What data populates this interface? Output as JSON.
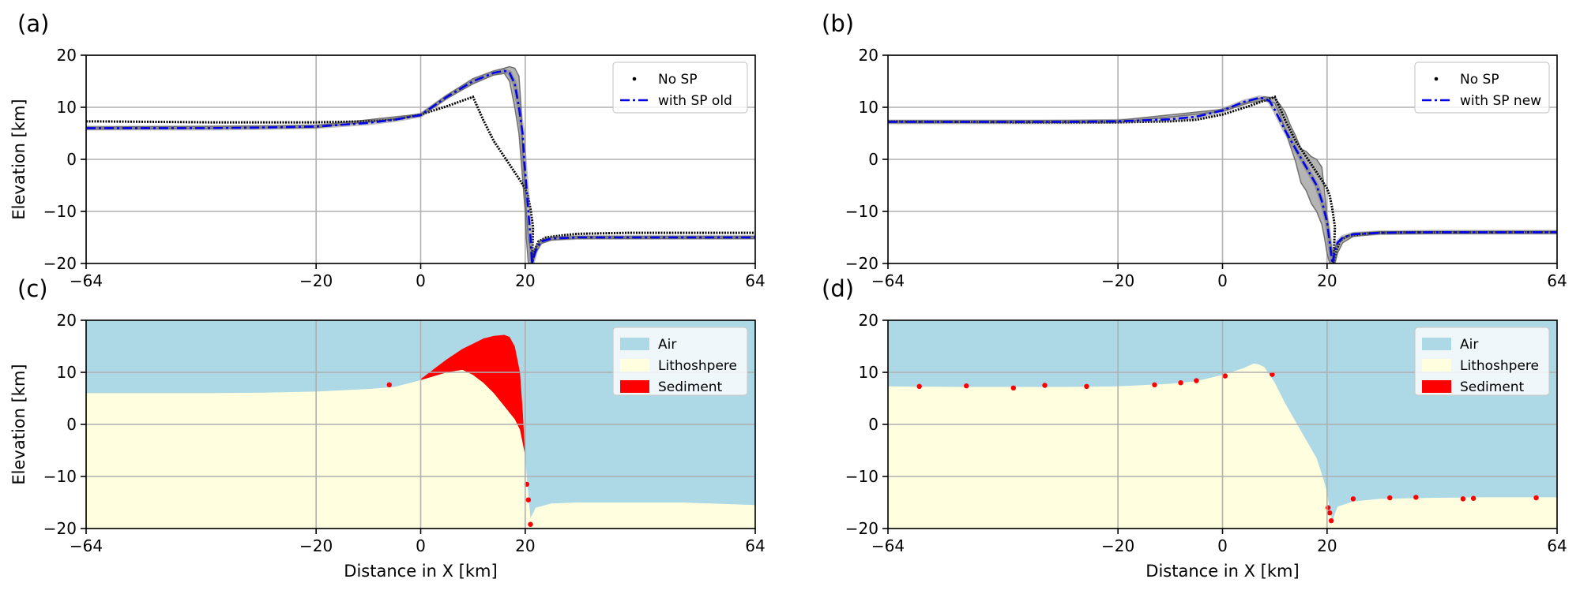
{
  "colors": {
    "no_sp": "#000000",
    "with_sp_line": "#0000ee",
    "band": "#a8a8a8",
    "band_edge": "#707070",
    "air": "#add8e6",
    "lithosphere": "#ffffe0",
    "sediment": "#ff0000",
    "grid": "#b0b0b0"
  },
  "chart_data": [
    {
      "id": "a",
      "panel_label": "(a)",
      "type": "line",
      "xlabel": "",
      "ylabel": "Elevation [km]",
      "xlim": [
        -64,
        64
      ],
      "ylim": [
        -20,
        20
      ],
      "xticks": [
        -64,
        -20,
        0,
        20,
        64
      ],
      "xtick_labels": [
        "−64",
        "−20",
        "0",
        "20",
        "64"
      ],
      "yticks": [
        20,
        10,
        0,
        -10,
        -20
      ],
      "ytick_labels": [
        "20",
        "10",
        "0",
        "−10",
        "−20"
      ],
      "grid": true,
      "legend_position": "top-right",
      "series": [
        {
          "name": "No SP",
          "style": "dots",
          "x": [
            -64,
            -50,
            -40,
            -30,
            -20,
            -10,
            -5,
            0,
            5,
            10,
            12,
            14,
            16,
            18,
            19,
            20,
            20.5,
            21,
            21.5,
            21.3,
            21.8,
            22.5,
            24,
            27,
            30,
            35,
            40,
            50,
            64
          ],
          "y": [
            7.3,
            7.2,
            7.1,
            7.1,
            7.1,
            7.3,
            7.6,
            8.6,
            10.2,
            12.0,
            7.5,
            3.5,
            0.5,
            -2.5,
            -4,
            -5.6,
            -7,
            -9.5,
            -13,
            -20,
            -17.5,
            -15.8,
            -15,
            -14.6,
            -14.3,
            -14.2,
            -14.1,
            -14.1,
            -14.1
          ]
        },
        {
          "name": "with SP old",
          "style": "dash-dot",
          "x": [
            -64,
            -50,
            -40,
            -30,
            -20,
            -10,
            -5,
            0,
            5,
            10,
            14,
            16,
            17,
            18,
            18.8,
            19.5,
            19.8,
            20.2,
            20.6,
            21,
            21.3,
            22,
            23,
            25,
            30,
            40,
            50,
            64
          ],
          "y": [
            6.0,
            6.0,
            6.0,
            6.1,
            6.3,
            7.0,
            7.6,
            8.5,
            12.0,
            15.0,
            16.6,
            17.0,
            16.6,
            14.5,
            10,
            5,
            0,
            -5,
            -10,
            -15,
            -20,
            -17.5,
            -15.8,
            -15.2,
            -15.0,
            -15.0,
            -15.0,
            -15.0
          ]
        }
      ],
      "band": {
        "x": [
          -64,
          -20,
          0,
          5,
          10,
          14,
          16,
          17,
          18,
          18.8,
          19.2,
          19.6,
          20,
          20.2,
          20.6,
          21,
          21.4,
          22,
          23,
          25,
          30,
          64
        ],
        "upper": [
          6.2,
          6.5,
          8.7,
          12.3,
          15.5,
          17.0,
          17.5,
          17.8,
          17.5,
          16,
          10,
          0,
          -5,
          -10,
          -15,
          -17,
          -18,
          -16.8,
          -15.5,
          -15.0,
          -14.8,
          -14.8
        ],
        "lower": [
          5.8,
          6.1,
          8.3,
          11.7,
          14.5,
          16.2,
          16.5,
          15,
          10,
          5,
          0,
          -5,
          -10,
          -15,
          -20,
          -20,
          -20,
          -18,
          -16.2,
          -15.5,
          -15.2,
          -15.2
        ]
      }
    },
    {
      "id": "b",
      "panel_label": "(b)",
      "type": "line",
      "xlabel": "",
      "ylabel": "",
      "xlim": [
        -64,
        64
      ],
      "ylim": [
        -20,
        20
      ],
      "xticks": [
        -64,
        -20,
        0,
        20,
        64
      ],
      "xtick_labels": [
        "−64",
        "−20",
        "0",
        "20",
        "64"
      ],
      "yticks": [
        20,
        10,
        0,
        -10,
        -20
      ],
      "ytick_labels": [
        "20",
        "10",
        "0",
        "−10",
        "−20"
      ],
      "grid": true,
      "legend_position": "top-right",
      "series": [
        {
          "name": "No SP",
          "style": "dots",
          "x": [
            -64,
            -50,
            -40,
            -30,
            -20,
            -10,
            -5,
            0,
            5,
            10,
            12,
            14,
            16,
            18,
            19,
            20,
            20.5,
            21,
            21.5,
            21.2,
            21.8,
            22.5,
            24,
            27,
            30,
            35,
            40,
            50,
            64
          ],
          "y": [
            7.3,
            7.2,
            7.1,
            7.1,
            7.1,
            7.3,
            7.6,
            8.6,
            10.2,
            12.0,
            7.5,
            3.5,
            0.5,
            -2.5,
            -4,
            -5.6,
            -7,
            -9.5,
            -13,
            -20,
            -17.5,
            -15.6,
            -14.7,
            -14.3,
            -14.1,
            -14.0,
            -14.0,
            -14.0,
            -14.0
          ]
        },
        {
          "name": "with SP new",
          "style": "dash-dot",
          "x": [
            -64,
            -50,
            -40,
            -30,
            -20,
            -10,
            -5,
            0,
            4,
            7,
            8,
            9,
            10,
            12,
            14,
            16,
            18,
            19,
            20,
            20.5,
            21,
            21.5,
            22,
            23,
            25,
            30,
            40,
            50,
            64
          ],
          "y": [
            7.2,
            7.2,
            7.2,
            7.2,
            7.3,
            7.7,
            8.2,
            9.4,
            11.0,
            11.8,
            11.7,
            11.2,
            9.5,
            5.5,
            2.0,
            -1.5,
            -5,
            -8,
            -12,
            -16,
            -20,
            -17.5,
            -16,
            -15,
            -14.4,
            -14.1,
            -14.0,
            -14.0,
            -14.0
          ]
        }
      ],
      "band": {
        "x": [
          -64,
          -20,
          0,
          5,
          8,
          10,
          11,
          12,
          13,
          14,
          15,
          16,
          17,
          18,
          19,
          19.5,
          20,
          20.5,
          21,
          21.5,
          22,
          23,
          25,
          30,
          64
        ],
        "upper": [
          7.4,
          7.5,
          9.6,
          11.1,
          12.0,
          11.8,
          10.5,
          9.0,
          6.5,
          4.5,
          2.0,
          1.5,
          0.5,
          0.0,
          -1.5,
          -6,
          -11,
          -15,
          -18,
          -17,
          -16,
          -15,
          -14.2,
          -13.9,
          -13.8
        ],
        "lower": [
          7.0,
          7.1,
          9.2,
          10.8,
          11.3,
          10.8,
          8.5,
          5.5,
          2.5,
          -0.5,
          -4.5,
          -6,
          -8.5,
          -10,
          -12.5,
          -15,
          -18,
          -20,
          -20,
          -20,
          -18,
          -16,
          -14.8,
          -14.3,
          -14.2
        ]
      }
    },
    {
      "id": "c",
      "panel_label": "(c)",
      "type": "area",
      "xlabel": "Distance in X [km]",
      "ylabel": "Elevation [km]",
      "xlim": [
        -64,
        64
      ],
      "ylim": [
        -20,
        20
      ],
      "xticks": [
        -64,
        -20,
        0,
        20,
        64
      ],
      "xtick_labels": [
        "−64",
        "−20",
        "0",
        "20",
        "64"
      ],
      "yticks": [
        20,
        10,
        0,
        -10,
        -20
      ],
      "ytick_labels": [
        "20",
        "10",
        "0",
        "−10",
        "−20"
      ],
      "grid": true,
      "legend_position": "top-right",
      "legend": [
        "Air",
        "Lithoshpere",
        "Sediment"
      ],
      "lithosphere_top": {
        "x": [
          -64,
          -50,
          -40,
          -30,
          -20,
          -10,
          -5,
          0,
          5,
          8,
          10,
          12,
          14,
          16,
          18,
          19,
          19.5,
          20,
          20.3,
          21,
          22,
          25,
          30,
          40,
          50,
          64
        ],
        "y": [
          6.0,
          6.0,
          6.0,
          6.1,
          6.3,
          6.8,
          7.2,
          8.5,
          10.0,
          10.5,
          9.5,
          8.0,
          6.0,
          3.5,
          1.0,
          -1.0,
          -3.5,
          -6.0,
          -10.0,
          -18.0,
          -16.0,
          -15.2,
          -15.0,
          -15.0,
          -15.0,
          -15.5
        ]
      },
      "sediment_top": {
        "x": [
          0,
          3,
          5,
          8,
          10,
          12,
          14,
          16,
          17,
          18,
          19,
          19.5,
          20
        ],
        "y": [
          8.7,
          11.0,
          12.5,
          14.5,
          15.5,
          16.5,
          17.0,
          17.2,
          16.8,
          15.0,
          10.0,
          3.0,
          -6.0
        ]
      },
      "sediment_spots": [
        {
          "x": -6.0,
          "y": 7.6
        },
        {
          "x": 20.3,
          "y": -11.5
        },
        {
          "x": 20.6,
          "y": -14.5
        },
        {
          "x": 21.0,
          "y": -19.2
        }
      ]
    },
    {
      "id": "d",
      "panel_label": "(d)",
      "type": "area",
      "xlabel": "Distance in X [km]",
      "ylabel": "",
      "xlim": [
        -64,
        64
      ],
      "ylim": [
        -20,
        20
      ],
      "xticks": [
        -64,
        -20,
        0,
        20,
        64
      ],
      "xtick_labels": [
        "−64",
        "−20",
        "0",
        "20",
        "64"
      ],
      "yticks": [
        20,
        10,
        0,
        -10,
        -20
      ],
      "ytick_labels": [
        "20",
        "10",
        "0",
        "−10",
        "−20"
      ],
      "grid": true,
      "legend_position": "top-right",
      "legend": [
        "Air",
        "Lithoshpere",
        "Sediment"
      ],
      "lithosphere_top": {
        "x": [
          -64,
          -50,
          -40,
          -30,
          -20,
          -10,
          -5,
          0,
          4,
          6,
          7,
          8,
          10,
          12,
          14,
          16,
          18,
          19,
          20,
          20.5,
          21,
          22,
          25,
          30,
          40,
          50,
          64
        ],
        "y": [
          7.3,
          7.2,
          7.2,
          7.2,
          7.3,
          7.8,
          8.3,
          9.5,
          10.8,
          11.7,
          11.5,
          11.0,
          8.0,
          4.0,
          0.5,
          -3.0,
          -6.5,
          -9.5,
          -13.0,
          -16.5,
          -18.5,
          -15.8,
          -14.8,
          -14.3,
          -14.1,
          -14.0,
          -14.0
        ]
      },
      "sediment_spots": [
        {
          "x": -58,
          "y": 7.3
        },
        {
          "x": -49,
          "y": 7.4
        },
        {
          "x": -40,
          "y": 7.0
        },
        {
          "x": -34,
          "y": 7.5
        },
        {
          "x": -26,
          "y": 7.3
        },
        {
          "x": -13,
          "y": 7.6
        },
        {
          "x": -8,
          "y": 8.0
        },
        {
          "x": -5,
          "y": 8.4
        },
        {
          "x": 0.5,
          "y": 9.3
        },
        {
          "x": 9.5,
          "y": 9.6
        },
        {
          "x": 20.5,
          "y": -17.0
        },
        {
          "x": 20.8,
          "y": -18.5
        },
        {
          "x": 20.2,
          "y": -16.0
        },
        {
          "x": 25,
          "y": -14.3
        },
        {
          "x": 32,
          "y": -14.1
        },
        {
          "x": 37,
          "y": -14.0
        },
        {
          "x": 46,
          "y": -14.3
        },
        {
          "x": 48,
          "y": -14.2
        },
        {
          "x": 60,
          "y": -14.1
        }
      ]
    }
  ]
}
